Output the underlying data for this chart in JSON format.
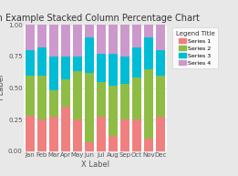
{
  "title": "An Example Stacked Column Percentage Chart",
  "xlabel": "X Label",
  "ylabel": "Y Label",
  "categories": [
    "Jan",
    "Feb",
    "Mar",
    "Apr",
    "May",
    "Jun",
    "Jul",
    "Aug",
    "Sep",
    "Oct",
    "Nov",
    "Dec"
  ],
  "series": {
    "Series 1": [
      0.28,
      0.25,
      0.27,
      0.35,
      0.25,
      0.07,
      0.27,
      0.12,
      0.25,
      0.25,
      0.1,
      0.27
    ],
    "Series 2": [
      0.32,
      0.35,
      0.21,
      0.22,
      0.38,
      0.55,
      0.28,
      0.4,
      0.28,
      0.33,
      0.55,
      0.33
    ],
    "Series 3": [
      0.2,
      0.22,
      0.27,
      0.18,
      0.12,
      0.28,
      0.22,
      0.25,
      0.22,
      0.24,
      0.25,
      0.2
    ],
    "Series 4": [
      0.2,
      0.18,
      0.25,
      0.25,
      0.25,
      0.1,
      0.23,
      0.23,
      0.25,
      0.18,
      0.1,
      0.2
    ]
  },
  "colors": {
    "Series 1": "#F08080",
    "Series 2": "#8FBC45",
    "Series 3": "#00BCD4",
    "Series 4": "#CC99CC"
  },
  "legend_title": "Legend Title",
  "fig_bg": "#E8E8E8",
  "panel_bg": "#FFFFFF",
  "grid_color": "#E0E0E0",
  "ylim": [
    0.0,
    1.0
  ],
  "yticks": [
    0.0,
    0.25,
    0.5,
    0.75,
    1.0
  ],
  "bar_width": 0.75,
  "title_fontsize": 7,
  "axis_label_fontsize": 6,
  "tick_fontsize": 5,
  "legend_fontsize": 4.5,
  "legend_title_fontsize": 5
}
